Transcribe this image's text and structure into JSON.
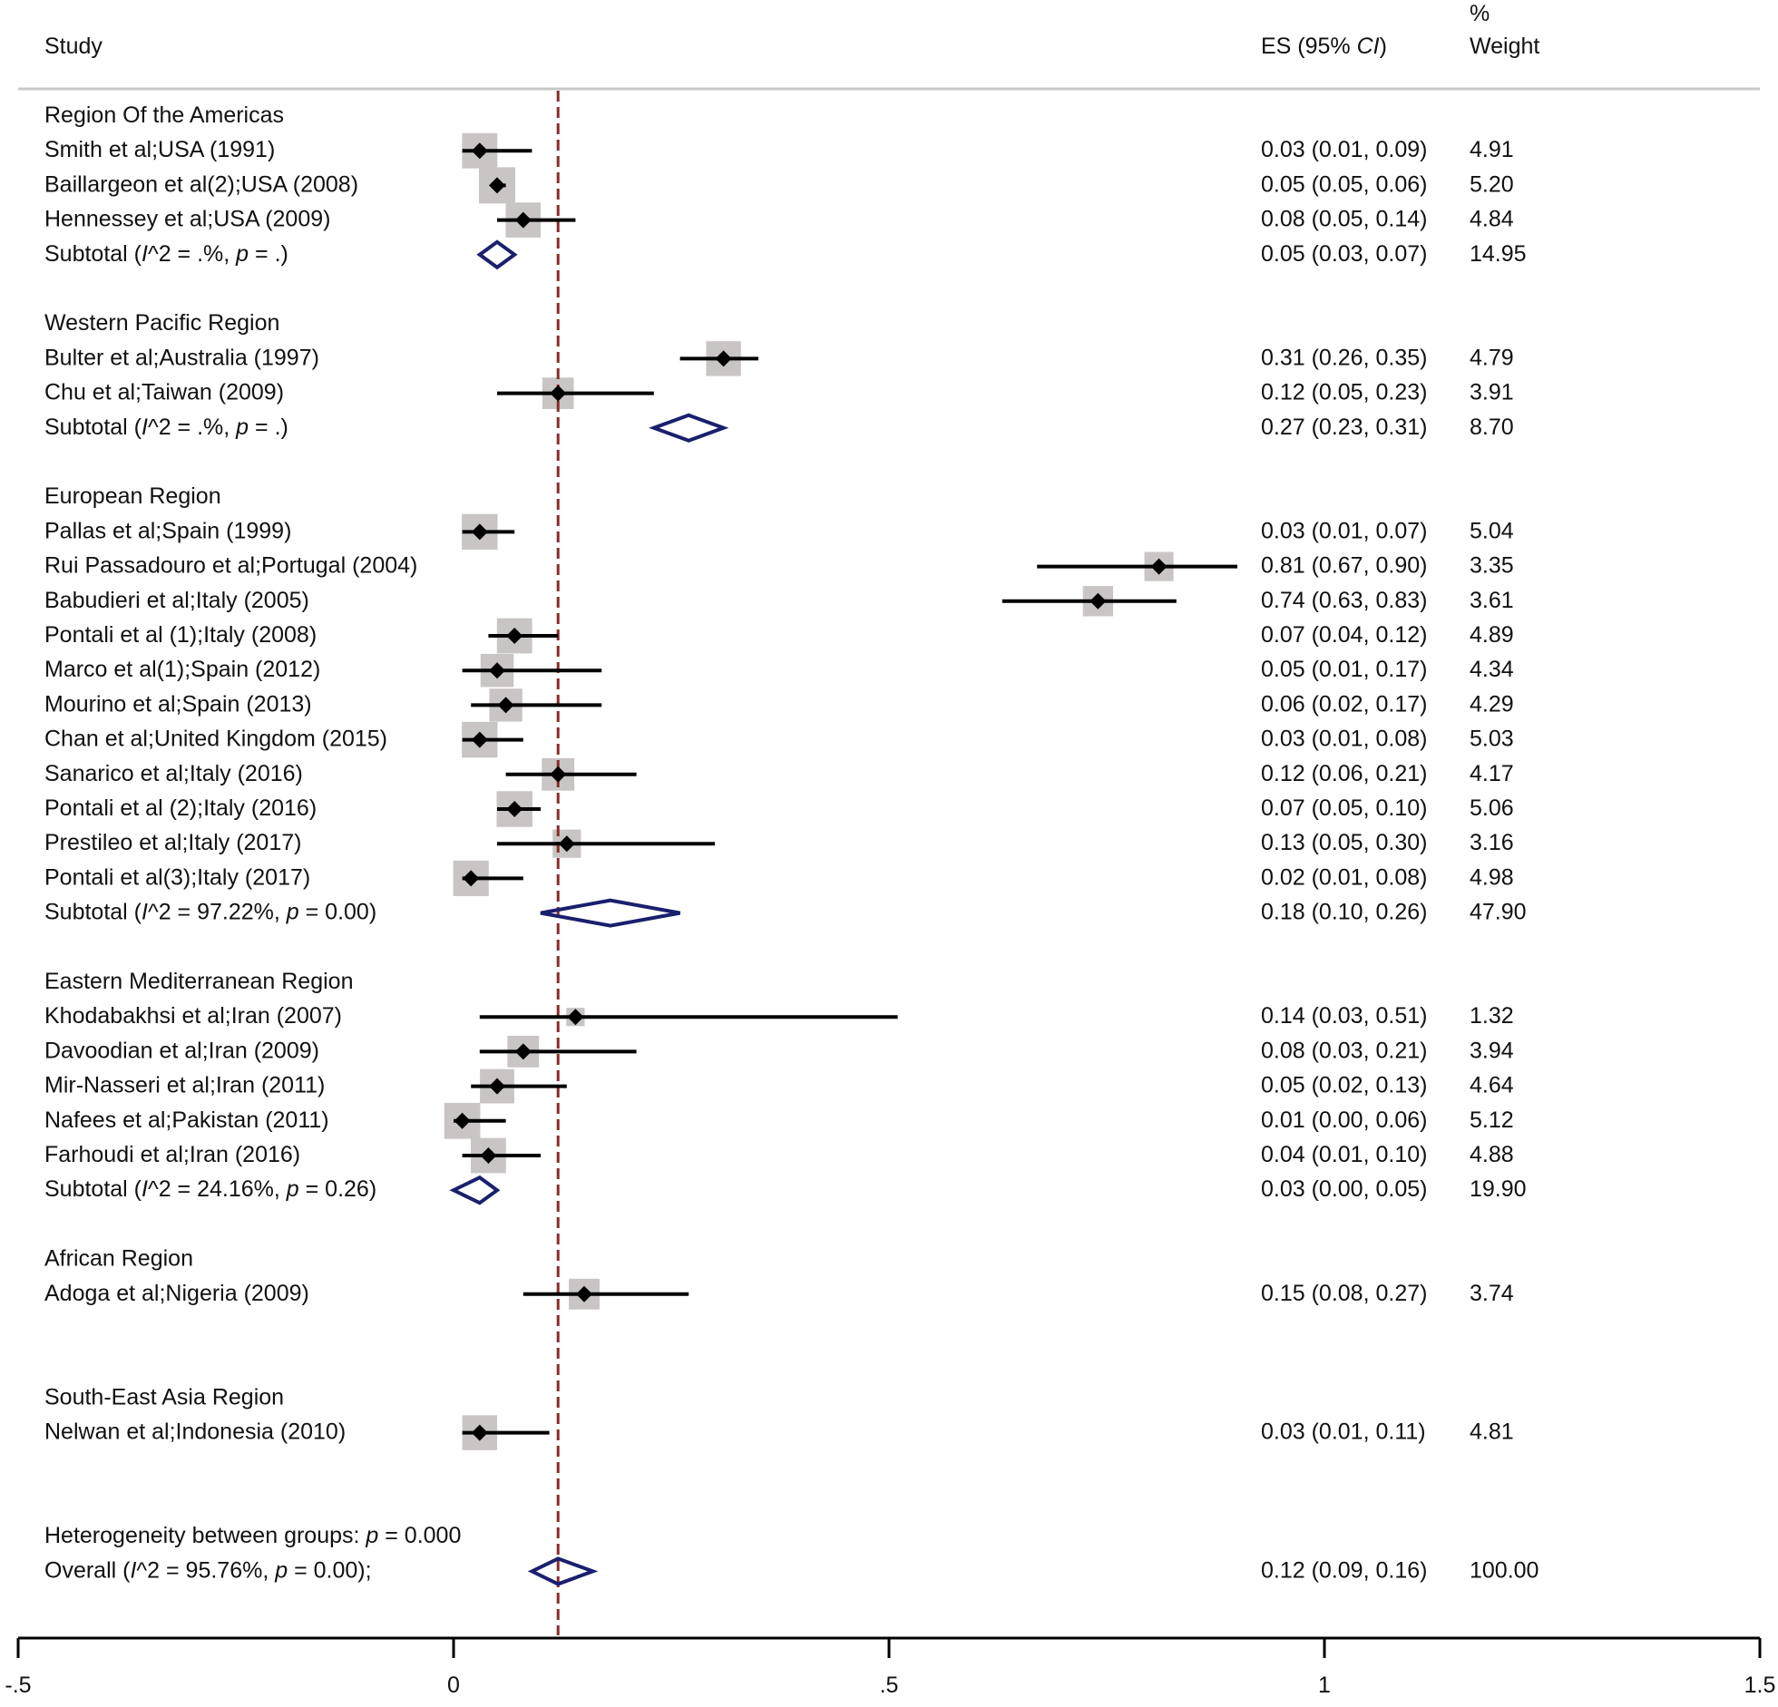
{
  "chart_data": {
    "type": "forest",
    "headers": {
      "study": "Study",
      "es": "ES (95% CI)",
      "es_prefix": "ES (95% ",
      "es_ci": "CI",
      "es_suffix": ")",
      "weight_line1": "%",
      "weight_line2": "Weight"
    },
    "x_axis": {
      "range": [
        -0.5,
        1.5
      ],
      "ticks": [
        -0.5,
        0,
        0.5,
        1,
        1.5
      ],
      "tick_labels": [
        "-.5",
        "0",
        ".5",
        "1",
        "1.5"
      ]
    },
    "reference_line": 0.12,
    "groups": [
      {
        "name": "Region Of the Americas",
        "studies": [
          {
            "label": "Smith et al;USA (1991)",
            "es": 0.03,
            "lo": 0.01,
            "hi": 0.09,
            "weight": 4.91,
            "es_text": "0.03 (0.01, 0.09)",
            "weight_text": "4.91"
          },
          {
            "label": "Baillargeon et al(2);USA (2008)",
            "es": 0.05,
            "lo": 0.05,
            "hi": 0.06,
            "weight": 5.2,
            "es_text": "0.05 (0.05, 0.06)",
            "weight_text": "5.20"
          },
          {
            "label": "Hennessey et al;USA (2009)",
            "es": 0.08,
            "lo": 0.05,
            "hi": 0.14,
            "weight": 4.84,
            "es_text": "0.08 (0.05, 0.14)",
            "weight_text": "4.84"
          }
        ],
        "subtotal": {
          "label_prefix": "Subtotal  (",
          "i2_sym": "I",
          "label_mid": "^2  = .%, ",
          "p_sym": "p",
          "label_suffix": " = .)",
          "es": 0.05,
          "lo": 0.03,
          "hi": 0.07,
          "es_text": "0.05 (0.03, 0.07)",
          "weight_text": "14.95"
        }
      },
      {
        "name": "Western Pacific Region",
        "studies": [
          {
            "label": "Bulter et al;Australia (1997)",
            "es": 0.31,
            "lo": 0.26,
            "hi": 0.35,
            "weight": 4.79,
            "es_text": "0.31 (0.26, 0.35)",
            "weight_text": "4.79"
          },
          {
            "label": "Chu et al;Taiwan (2009)",
            "es": 0.12,
            "lo": 0.05,
            "hi": 0.23,
            "weight": 3.91,
            "es_text": "0.12 (0.05, 0.23)",
            "weight_text": "3.91"
          }
        ],
        "subtotal": {
          "label_prefix": "Subtotal  (",
          "i2_sym": "I",
          "label_mid": "^2  = .%, ",
          "p_sym": "p",
          "label_suffix": " = .)",
          "es": 0.27,
          "lo": 0.23,
          "hi": 0.31,
          "es_text": "0.27 (0.23, 0.31)",
          "weight_text": "8.70"
        }
      },
      {
        "name": "European Region",
        "studies": [
          {
            "label": "Pallas et al;Spain (1999)",
            "es": 0.03,
            "lo": 0.01,
            "hi": 0.07,
            "weight": 5.04,
            "es_text": "0.03 (0.01, 0.07)",
            "weight_text": "5.04"
          },
          {
            "label": "Rui Passadouro et al;Portugal (2004)",
            "es": 0.81,
            "lo": 0.67,
            "hi": 0.9,
            "weight": 3.35,
            "es_text": "0.81 (0.67, 0.90)",
            "weight_text": "3.35"
          },
          {
            "label": "Babudieri et al;Italy (2005)",
            "es": 0.74,
            "lo": 0.63,
            "hi": 0.83,
            "weight": 3.61,
            "es_text": "0.74 (0.63, 0.83)",
            "weight_text": "3.61"
          },
          {
            "label": "Pontali et al (1);Italy (2008)",
            "es": 0.07,
            "lo": 0.04,
            "hi": 0.12,
            "weight": 4.89,
            "es_text": "0.07 (0.04, 0.12)",
            "weight_text": "4.89"
          },
          {
            "label": "Marco et al(1);Spain (2012)",
            "es": 0.05,
            "lo": 0.01,
            "hi": 0.17,
            "weight": 4.34,
            "es_text": "0.05 (0.01, 0.17)",
            "weight_text": "4.34"
          },
          {
            "label": "Mourino et al;Spain (2013)",
            "es": 0.06,
            "lo": 0.02,
            "hi": 0.17,
            "weight": 4.29,
            "es_text": "0.06 (0.02, 0.17)",
            "weight_text": "4.29"
          },
          {
            "label": "Chan et al;United Kingdom  (2015)",
            "es": 0.03,
            "lo": 0.01,
            "hi": 0.08,
            "weight": 5.03,
            "es_text": "0.03 (0.01, 0.08)",
            "weight_text": "5.03"
          },
          {
            "label": "Sanarico et al;Italy (2016)",
            "es": 0.12,
            "lo": 0.06,
            "hi": 0.21,
            "weight": 4.17,
            "es_text": "0.12 (0.06, 0.21)",
            "weight_text": "4.17"
          },
          {
            "label": "Pontali et al (2);Italy (2016)",
            "es": 0.07,
            "lo": 0.05,
            "hi": 0.1,
            "weight": 5.06,
            "es_text": "0.07 (0.05, 0.10)",
            "weight_text": "5.06"
          },
          {
            "label": "Prestileo et al;Italy (2017)",
            "es": 0.13,
            "lo": 0.05,
            "hi": 0.3,
            "weight": 3.16,
            "es_text": "0.13 (0.05, 0.30)",
            "weight_text": "3.16"
          },
          {
            "label": "Pontali et al(3);Italy (2017)",
            "es": 0.02,
            "lo": 0.01,
            "hi": 0.08,
            "weight": 4.98,
            "es_text": "0.02 (0.01, 0.08)",
            "weight_text": "4.98"
          }
        ],
        "subtotal": {
          "label_prefix": "Subtotal  (",
          "i2_sym": "I",
          "label_mid": "^2  = 97.22%, ",
          "p_sym": "p",
          "label_suffix": " = 0.00)",
          "es": 0.18,
          "lo": 0.1,
          "hi": 0.26,
          "es_text": "0.18 (0.10, 0.26)",
          "weight_text": "47.90"
        }
      },
      {
        "name": "Eastern Mediterranean Region",
        "studies": [
          {
            "label": "Khodabakhsi et al;Iran (2007)",
            "es": 0.14,
            "lo": 0.03,
            "hi": 0.51,
            "weight": 1.32,
            "es_text": "0.14 (0.03, 0.51)",
            "weight_text": "1.32"
          },
          {
            "label": "Davoodian et al;Iran (2009)",
            "es": 0.08,
            "lo": 0.03,
            "hi": 0.21,
            "weight": 3.94,
            "es_text": "0.08 (0.03, 0.21)",
            "weight_text": "3.94"
          },
          {
            "label": "Mir-Nasseri et al;Iran (2011)",
            "es": 0.05,
            "lo": 0.02,
            "hi": 0.13,
            "weight": 4.64,
            "es_text": "0.05 (0.02, 0.13)",
            "weight_text": "4.64"
          },
          {
            "label": "Nafees et al;Pakistan (2011)",
            "es": 0.01,
            "lo": 0.0,
            "hi": 0.06,
            "weight": 5.12,
            "es_text": "0.01 (0.00, 0.06)",
            "weight_text": "5.12"
          },
          {
            "label": "Farhoudi et al;Iran (2016)",
            "es": 0.04,
            "lo": 0.01,
            "hi": 0.1,
            "weight": 4.88,
            "es_text": "0.04 (0.01, 0.10)",
            "weight_text": "4.88"
          }
        ],
        "subtotal": {
          "label_prefix": "Subtotal  (",
          "i2_sym": "I",
          "label_mid": "^2  = 24.16%, ",
          "p_sym": "p",
          "label_suffix": " = 0.26)",
          "es": 0.03,
          "lo": 0.0,
          "hi": 0.05,
          "es_text": "0.03 (0.00, 0.05)",
          "weight_text": "19.90"
        }
      },
      {
        "name": "African Region",
        "studies": [
          {
            "label": "Adoga et al;Nigeria (2009)",
            "es": 0.15,
            "lo": 0.08,
            "hi": 0.27,
            "weight": 3.74,
            "es_text": "0.15 (0.08, 0.27)",
            "weight_text": "3.74"
          }
        ]
      },
      {
        "name": "South-East Asia Region",
        "studies": [
          {
            "label": "Nelwan et al;Indonesia (2010)",
            "es": 0.03,
            "lo": 0.01,
            "hi": 0.11,
            "weight": 4.81,
            "es_text": "0.03 (0.01, 0.11)",
            "weight_text": "4.81"
          }
        ]
      }
    ],
    "heterogeneity": {
      "prefix": "Heterogeneity between groups: ",
      "p_sym": "p",
      "suffix": " = 0.000"
    },
    "overall": {
      "label_prefix": "Overall  (",
      "i2_sym": "I",
      "label_mid": "^2  = 95.76%, ",
      "p_sym": "p",
      "label_suffix": " = 0.00);",
      "es": 0.12,
      "lo": 0.09,
      "hi": 0.16,
      "es_text": "0.12 (0.09, 0.16)",
      "weight_text": "100.00"
    },
    "colors": {
      "text": "#111111",
      "box": "#c9c5c4",
      "diamond": "#1a1f6e",
      "ref_line": "#8b2a2a",
      "header_rule": "#c8c8c8"
    }
  }
}
